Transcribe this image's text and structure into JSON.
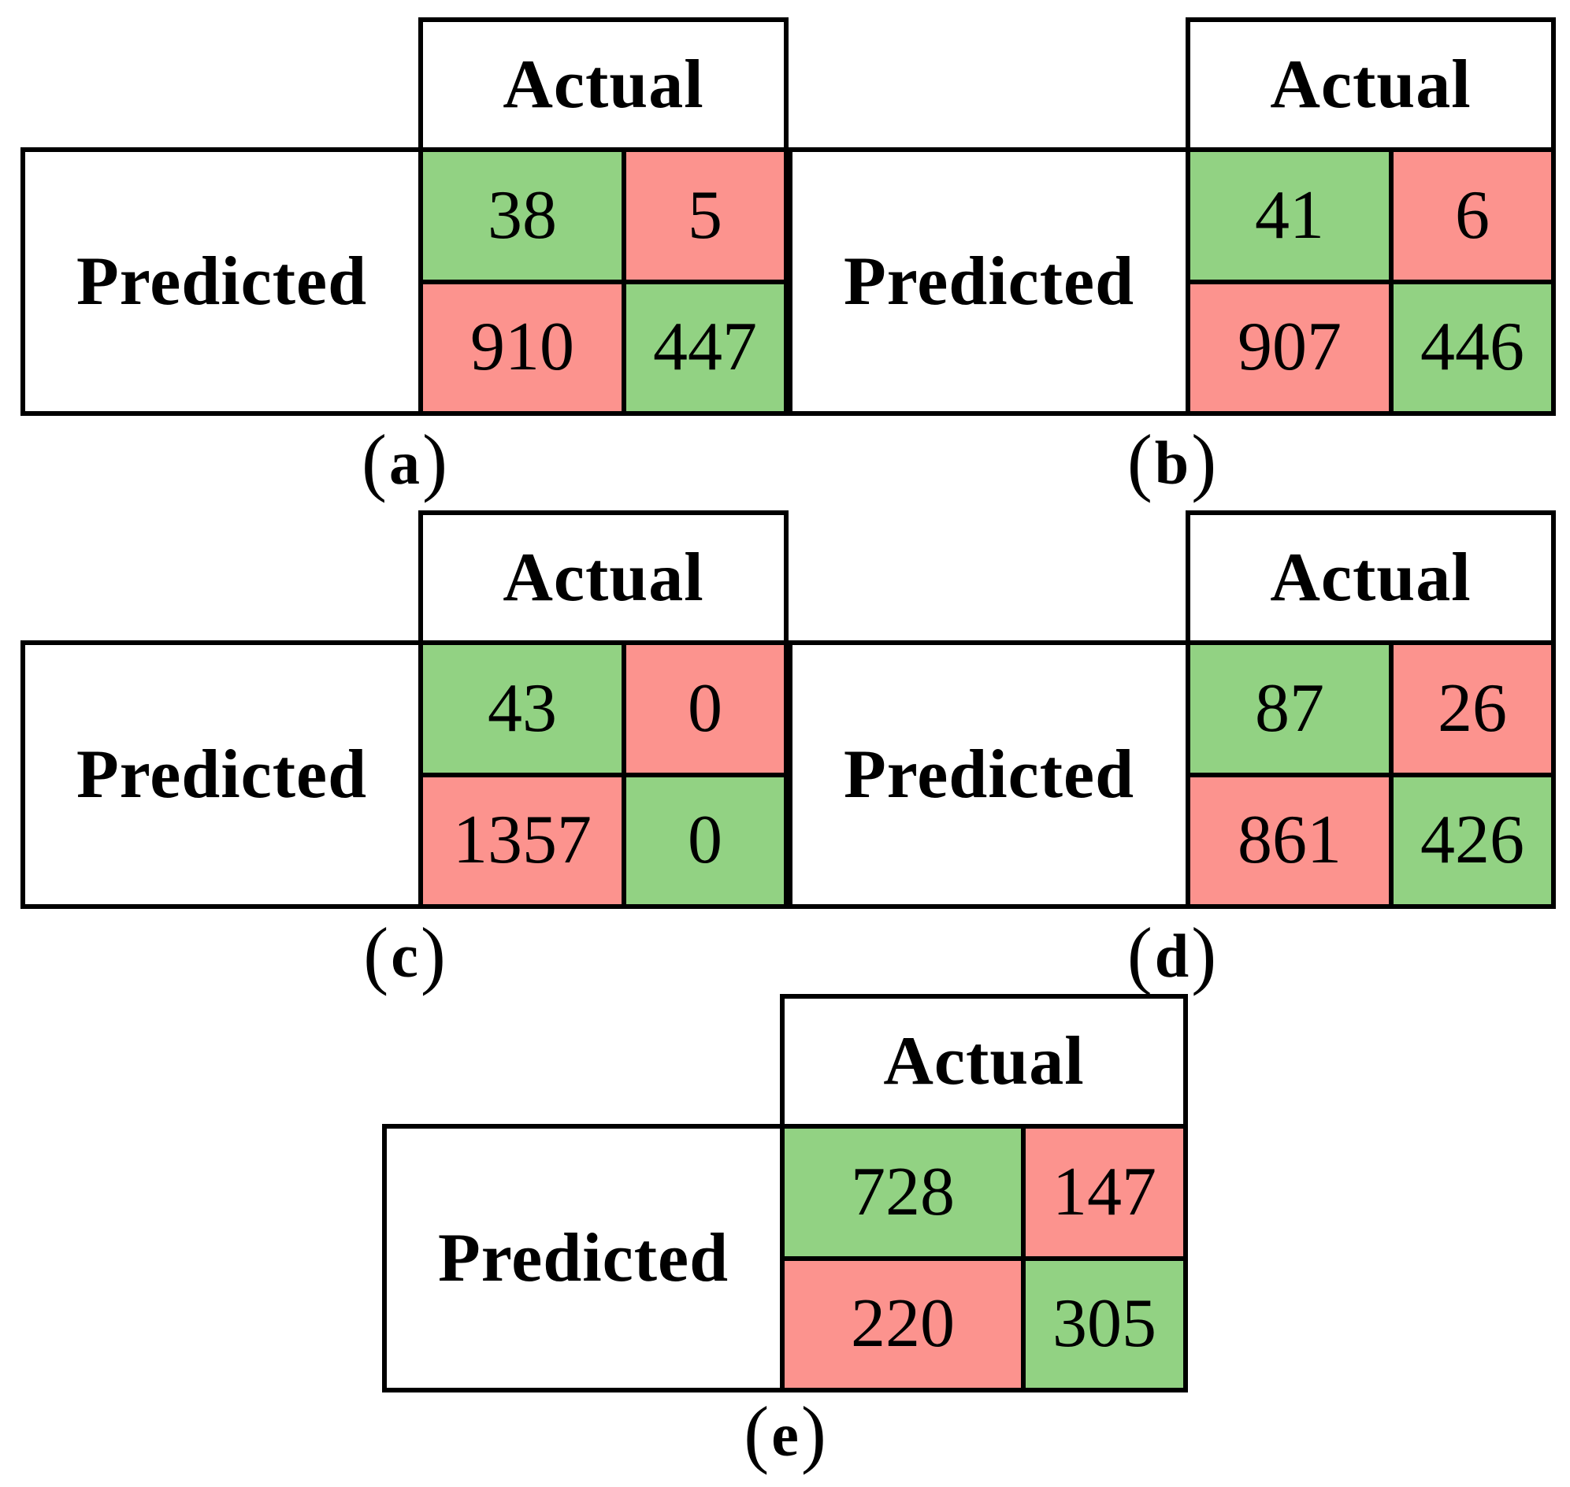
{
  "labels": {
    "open_paren": "(",
    "close_paren": ")"
  },
  "palette": {
    "cell_green": "#92d283",
    "cell_red": "#fc938e",
    "border": "#000000",
    "background": "#ffffff",
    "text": "#000000"
  },
  "chart_data": [
    {
      "type": "table",
      "subtype": "confusion_matrix",
      "caption_letter": "a",
      "caption": "(a)",
      "col_header": "Actual",
      "row_header": "Predicted",
      "rows": [
        [
          38,
          5
        ],
        [
          910,
          447
        ]
      ],
      "cell_colors": [
        [
          "green",
          "red"
        ],
        [
          "red",
          "green"
        ]
      ]
    },
    {
      "type": "table",
      "subtype": "confusion_matrix",
      "caption_letter": "b",
      "caption": "(b)",
      "col_header": "Actual",
      "row_header": "Predicted",
      "rows": [
        [
          41,
          6
        ],
        [
          907,
          446
        ]
      ],
      "cell_colors": [
        [
          "green",
          "red"
        ],
        [
          "red",
          "green"
        ]
      ]
    },
    {
      "type": "table",
      "subtype": "confusion_matrix",
      "caption_letter": "c",
      "caption": "(c)",
      "col_header": "Actual",
      "row_header": "Predicted",
      "rows": [
        [
          43,
          0
        ],
        [
          1357,
          0
        ]
      ],
      "cell_colors": [
        [
          "green",
          "red"
        ],
        [
          "red",
          "green"
        ]
      ]
    },
    {
      "type": "table",
      "subtype": "confusion_matrix",
      "caption_letter": "d",
      "caption": "(d)",
      "col_header": "Actual",
      "row_header": "Predicted",
      "rows": [
        [
          87,
          26
        ],
        [
          861,
          426
        ]
      ],
      "cell_colors": [
        [
          "green",
          "red"
        ],
        [
          "red",
          "green"
        ]
      ]
    },
    {
      "type": "table",
      "subtype": "confusion_matrix",
      "caption_letter": "e",
      "caption": "(e)",
      "col_header": "Actual",
      "row_header": "Predicted",
      "rows": [
        [
          728,
          147
        ],
        [
          220,
          305
        ]
      ],
      "cell_colors": [
        [
          "green",
          "red"
        ],
        [
          "red",
          "green"
        ]
      ]
    }
  ]
}
